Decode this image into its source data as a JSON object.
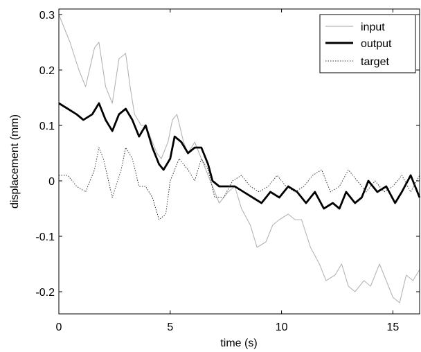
{
  "chart_data": {
    "type": "line",
    "title": "",
    "xlabel": "time (s)",
    "ylabel": "displacement (mm)",
    "xlim": [
      0,
      16.2
    ],
    "ylim": [
      -0.24,
      0.31
    ],
    "xticks": [
      0,
      5,
      10,
      15
    ],
    "xtick_labels": [
      "0",
      "5",
      "10",
      "15"
    ],
    "yticks": [
      -0.2,
      -0.1,
      0,
      0.1,
      0.2,
      0.3
    ],
    "ytick_labels": [
      "-0.2",
      "-0.1",
      "0",
      "0.1",
      "0.2",
      "0.3"
    ],
    "grid": false,
    "legend_position": "top-right",
    "series": [
      {
        "name": "input",
        "color": "#b4b4b4",
        "style": "solid-thin",
        "x": [
          0,
          0.5,
          0.9,
          1.2,
          1.6,
          1.8,
          2.1,
          2.4,
          2.7,
          3.0,
          3.2,
          3.4,
          3.7,
          3.9,
          4.2,
          4.4,
          4.6,
          4.9,
          5.1,
          5.3,
          5.6,
          5.8,
          6.1,
          6.4,
          6.6,
          6.9,
          7.2,
          7.6,
          7.9,
          8.2,
          8.6,
          8.9,
          9.3,
          9.6,
          9.9,
          10.3,
          10.6,
          10.9,
          11.3,
          11.7,
          12.0,
          12.4,
          12.7,
          13.0,
          13.3,
          13.7,
          14.0,
          14.4,
          14.7,
          15.0,
          15.3,
          15.6,
          15.9,
          16.2
        ],
        "y": [
          0.3,
          0.25,
          0.2,
          0.17,
          0.24,
          0.25,
          0.17,
          0.14,
          0.22,
          0.23,
          0.17,
          0.12,
          0.1,
          0.1,
          0.07,
          0.05,
          0.04,
          0.07,
          0.11,
          0.12,
          0.07,
          0.05,
          0.07,
          0.04,
          0.02,
          -0.01,
          -0.04,
          -0.02,
          -0.01,
          -0.05,
          -0.08,
          -0.12,
          -0.11,
          -0.08,
          -0.07,
          -0.06,
          -0.07,
          -0.07,
          -0.12,
          -0.15,
          -0.18,
          -0.17,
          -0.15,
          -0.19,
          -0.2,
          -0.18,
          -0.19,
          -0.15,
          -0.18,
          -0.21,
          -0.22,
          -0.17,
          -0.18,
          -0.16
        ]
      },
      {
        "name": "output",
        "color": "#000000",
        "style": "solid-thick",
        "x": [
          0,
          0.4,
          0.8,
          1.1,
          1.5,
          1.8,
          2.1,
          2.4,
          2.7,
          3.0,
          3.3,
          3.6,
          3.9,
          4.2,
          4.5,
          4.7,
          5.0,
          5.2,
          5.5,
          5.8,
          6.1,
          6.4,
          6.7,
          6.9,
          7.2,
          7.5,
          7.9,
          8.3,
          8.7,
          9.1,
          9.5,
          9.9,
          10.3,
          10.7,
          11.1,
          11.5,
          11.9,
          12.3,
          12.6,
          12.9,
          13.3,
          13.6,
          13.9,
          14.3,
          14.7,
          15.1,
          15.4,
          15.8,
          16.2
        ],
        "y": [
          0.14,
          0.13,
          0.12,
          0.11,
          0.12,
          0.14,
          0.11,
          0.09,
          0.12,
          0.13,
          0.11,
          0.08,
          0.1,
          0.06,
          0.03,
          0.02,
          0.04,
          0.08,
          0.07,
          0.05,
          0.06,
          0.06,
          0.03,
          0.0,
          -0.01,
          -0.01,
          -0.01,
          -0.02,
          -0.03,
          -0.04,
          -0.02,
          -0.03,
          -0.01,
          -0.02,
          -0.04,
          -0.02,
          -0.05,
          -0.04,
          -0.05,
          -0.02,
          -0.04,
          -0.03,
          0.0,
          -0.02,
          -0.01,
          -0.04,
          -0.02,
          0.01,
          -0.03
        ]
      },
      {
        "name": "target",
        "color": "#333333",
        "style": "dotted",
        "x": [
          0,
          0.4,
          0.8,
          1.2,
          1.6,
          1.8,
          2.0,
          2.4,
          2.8,
          3.0,
          3.3,
          3.6,
          3.9,
          4.2,
          4.5,
          4.8,
          5.0,
          5.4,
          5.8,
          6.1,
          6.4,
          6.7,
          7.0,
          7.4,
          7.8,
          8.2,
          8.6,
          9.0,
          9.4,
          9.8,
          10.2,
          10.6,
          11.0,
          11.4,
          11.8,
          12.2,
          12.6,
          13.0,
          13.4,
          13.8,
          14.2,
          14.6,
          15.0,
          15.4,
          15.8,
          16.2
        ],
        "y": [
          0.01,
          0.01,
          -0.01,
          -0.02,
          0.02,
          0.06,
          0.04,
          -0.03,
          0.02,
          0.06,
          0.04,
          -0.01,
          -0.01,
          -0.03,
          -0.07,
          -0.06,
          0.0,
          0.04,
          0.02,
          0.0,
          0.04,
          0.02,
          -0.03,
          -0.03,
          0.0,
          0.01,
          -0.01,
          -0.02,
          -0.01,
          0.01,
          -0.01,
          -0.02,
          -0.01,
          0.01,
          0.02,
          -0.02,
          -0.01,
          0.02,
          0.0,
          -0.02,
          0.0,
          -0.02,
          -0.01,
          0.01,
          -0.02,
          0.01
        ]
      }
    ]
  }
}
